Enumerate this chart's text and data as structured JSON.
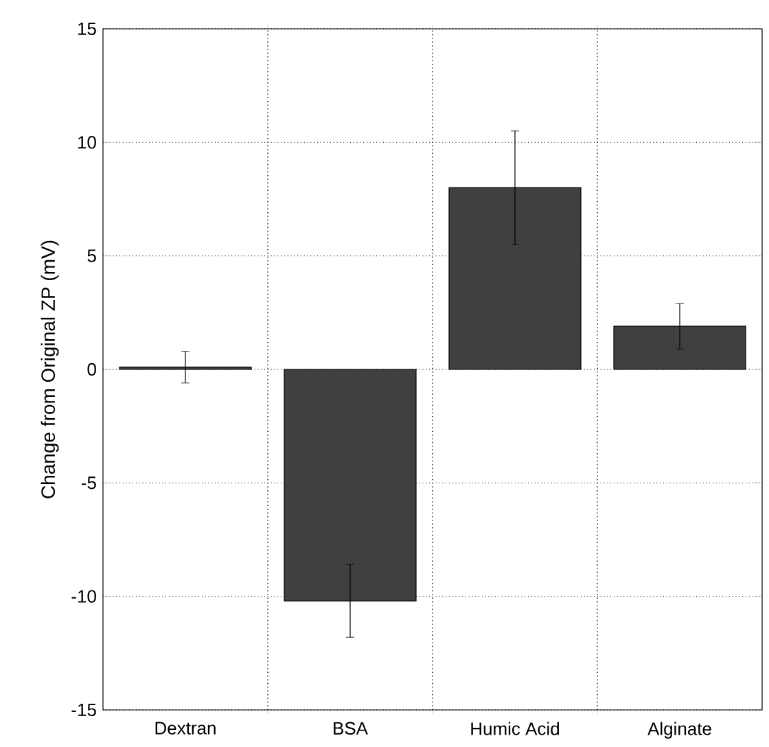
{
  "chart_data": {
    "type": "bar",
    "ylabel": "Change from Original ZP (mV)",
    "categories": [
      "Dextran",
      "BSA",
      "Humic Acid",
      "Alginate"
    ],
    "values": [
      0.1,
      -10.2,
      8.0,
      1.9
    ],
    "errors": [
      0.7,
      1.6,
      2.5,
      1.0
    ],
    "color": "#404040",
    "ylim": [
      -15,
      15
    ],
    "yticks": [
      -15,
      -10,
      -5,
      0,
      5,
      10,
      15
    ],
    "grid": true
  }
}
